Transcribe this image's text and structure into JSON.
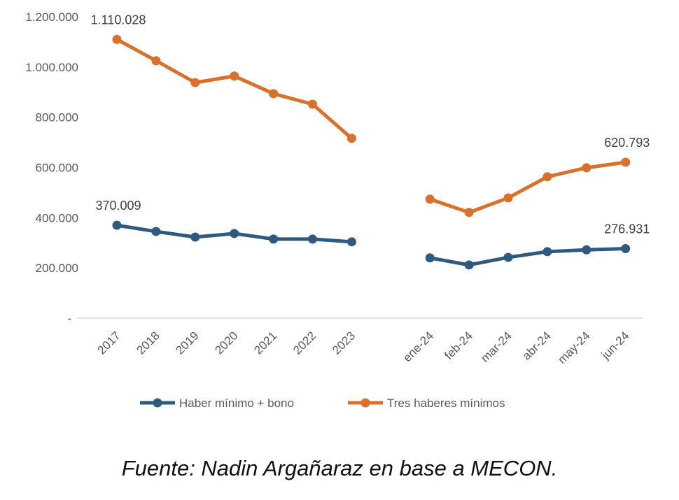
{
  "chart_data": {
    "type": "line",
    "categories": [
      "2017",
      "2018",
      "2019",
      "2020",
      "2021",
      "2022",
      "2023",
      "",
      "ene-24",
      "feb-24",
      "mar-24",
      "abr-24",
      "may-24",
      "jun-24"
    ],
    "ylim": [
      0,
      1200000
    ],
    "yticks": [
      0,
      200000,
      400000,
      600000,
      800000,
      1000000,
      1200000
    ],
    "ytick_labels": [
      "-",
      "200.000",
      "400.000",
      "600.000",
      "800.000",
      "1.000.000",
      "1.200.000"
    ],
    "grid": false,
    "legend_position": "bottom",
    "series": [
      {
        "name": "Haber mínimo + bono",
        "color": "#2E5A7F",
        "values": [
          370009,
          345000,
          323000,
          337000,
          315000,
          315000,
          304000,
          null,
          240000,
          212000,
          242000,
          265000,
          272000,
          276931
        ],
        "data_labels": {
          "0": "370.009",
          "13": "276.931"
        }
      },
      {
        "name": "Tres haberes mínimos",
        "color": "#D9702B",
        "values": [
          1110028,
          1025000,
          938000,
          964000,
          894000,
          852000,
          716000,
          null,
          474000,
          421000,
          479000,
          563000,
          599000,
          620793
        ],
        "data_labels": {
          "0": "1.110.028",
          "13": "620.793"
        }
      }
    ]
  },
  "source": "Fuente: Nadin Argañaraz en base a MECON."
}
